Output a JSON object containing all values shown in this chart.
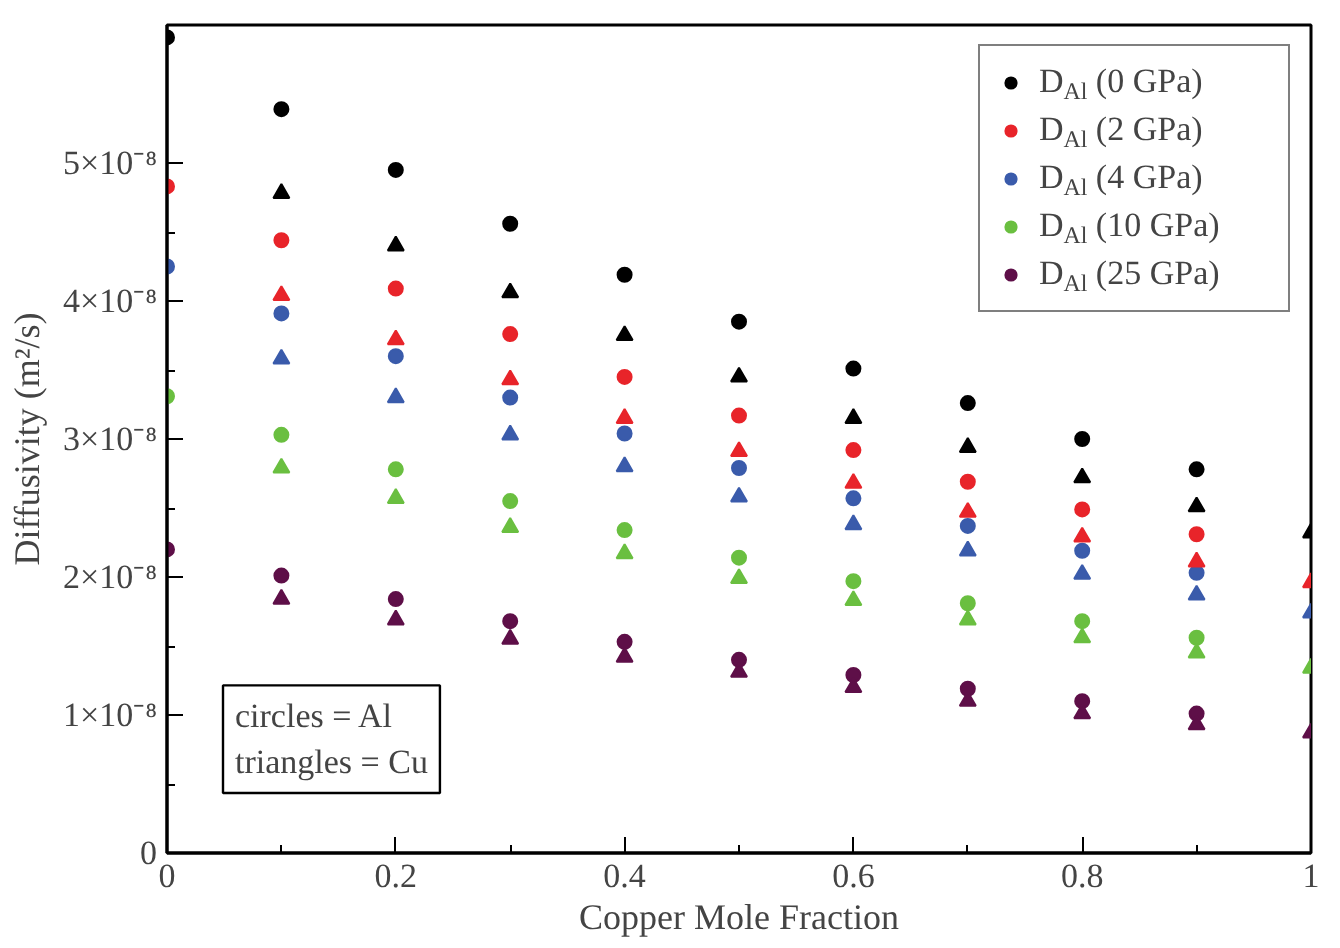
{
  "chart_data": {
    "type": "scatter",
    "xlabel": "Copper Mole Fraction",
    "ylabel": "Diffusivity (m²/s)",
    "xlim": [
      0,
      1
    ],
    "ylim": [
      0,
      6e-08
    ],
    "xticks": [
      0,
      0.2,
      0.4,
      0.6,
      0.8,
      1
    ],
    "yticks": [
      0,
      {
        "value": 1e-08,
        "label": "1×10⁻⁸"
      },
      {
        "value": 2e-08,
        "label": "2×10⁻⁸"
      },
      {
        "value": 3e-08,
        "label": "3×10⁻⁸"
      },
      {
        "value": 4e-08,
        "label": "4×10⁻⁸"
      },
      {
        "value": 5e-08,
        "label": "5×10⁻⁸"
      }
    ],
    "grid": false,
    "legend": "top right",
    "annotations": [
      "circles = Al",
      "triangles = Cu"
    ],
    "series": [
      {
        "name": "D$_{Al}$ (0 GPa)",
        "color": "#000000",
        "marker": "circle",
        "x": [
          0,
          0.1,
          0.2,
          0.3,
          0.4,
          0.5,
          0.6,
          0.7,
          0.8,
          0.9
        ],
        "values": [
          5.91e-08,
          5.39e-08,
          4.95e-08,
          4.56e-08,
          4.19e-08,
          3.85e-08,
          3.51e-08,
          3.26e-08,
          3e-08,
          2.78e-08
        ]
      },
      {
        "name": "D$_{Al}$ (2 GPa)",
        "color": "#e8242a",
        "marker": "circle",
        "x": [
          0,
          0.1,
          0.2,
          0.3,
          0.4,
          0.5,
          0.6,
          0.7,
          0.8,
          0.9
        ],
        "values": [
          4.83e-08,
          4.44e-08,
          4.09e-08,
          3.76e-08,
          3.45e-08,
          3.17e-08,
          2.92e-08,
          2.69e-08,
          2.49e-08,
          2.31e-08
        ]
      },
      {
        "name": "D$_{Al}$ (4 GPa)",
        "color": "#3a5bab",
        "marker": "circle",
        "x": [
          0,
          0.1,
          0.2,
          0.3,
          0.4,
          0.5,
          0.6,
          0.7,
          0.8,
          0.9
        ],
        "values": [
          4.25e-08,
          3.91e-08,
          3.6e-08,
          3.3e-08,
          3.04e-08,
          2.79e-08,
          2.57e-08,
          2.37e-08,
          2.19e-08,
          2.03e-08
        ]
      },
      {
        "name": "D$_{Al}$ (10 GPa)",
        "color": "#6abf40",
        "marker": "circle",
        "x": [
          0,
          0.1,
          0.2,
          0.3,
          0.4,
          0.5,
          0.6,
          0.7,
          0.8,
          0.9
        ],
        "values": [
          3.31e-08,
          3.03e-08,
          2.78e-08,
          2.55e-08,
          2.34e-08,
          2.14e-08,
          1.97e-08,
          1.81e-08,
          1.68e-08,
          1.56e-08
        ]
      },
      {
        "name": "D$_{Al}$ (25 GPa)",
        "color": "#5e0f48",
        "marker": "circle",
        "x": [
          0,
          0.1,
          0.2,
          0.3,
          0.4,
          0.5,
          0.6,
          0.7,
          0.8,
          0.9
        ],
        "values": [
          2.2e-08,
          2.01e-08,
          1.84e-08,
          1.68e-08,
          1.53e-08,
          1.4e-08,
          1.29e-08,
          1.19e-08,
          1.1e-08,
          1.01e-08
        ]
      },
      {
        "color": "#000000",
        "marker": "triangle",
        "x": [
          0.1,
          0.2,
          0.3,
          0.4,
          0.5,
          0.6,
          0.7,
          0.8,
          0.9,
          1
        ],
        "values": [
          4.78e-08,
          4.4e-08,
          4.06e-08,
          3.75e-08,
          3.45e-08,
          3.15e-08,
          2.94e-08,
          2.72e-08,
          2.51e-08,
          2.32e-08
        ]
      },
      {
        "color": "#e8242a",
        "marker": "triangle",
        "x": [
          0.1,
          0.2,
          0.3,
          0.4,
          0.5,
          0.6,
          0.7,
          0.8,
          0.9,
          1
        ],
        "values": [
          4.04e-08,
          3.72e-08,
          3.43e-08,
          3.15e-08,
          2.91e-08,
          2.68e-08,
          2.47e-08,
          2.29e-08,
          2.11e-08,
          1.96e-08
        ]
      },
      {
        "color": "#3a5bab",
        "marker": "triangle",
        "x": [
          0.1,
          0.2,
          0.3,
          0.4,
          0.5,
          0.6,
          0.7,
          0.8,
          0.9,
          1
        ],
        "values": [
          3.58e-08,
          3.3e-08,
          3.03e-08,
          2.8e-08,
          2.58e-08,
          2.38e-08,
          2.19e-08,
          2.02e-08,
          1.87e-08,
          1.74e-08
        ]
      },
      {
        "color": "#6abf40",
        "marker": "triangle",
        "x": [
          0.1,
          0.2,
          0.3,
          0.4,
          0.5,
          0.6,
          0.7,
          0.8,
          0.9,
          1
        ],
        "values": [
          2.79e-08,
          2.57e-08,
          2.36e-08,
          2.17e-08,
          1.99e-08,
          1.83e-08,
          1.69e-08,
          1.56e-08,
          1.45e-08,
          1.34e-08
        ]
      },
      {
        "color": "#5e0f48",
        "marker": "triangle",
        "x": [
          0.1,
          0.2,
          0.3,
          0.4,
          0.5,
          0.6,
          0.7,
          0.8,
          0.9,
          1
        ],
        "values": [
          1.84e-08,
          1.69e-08,
          1.55e-08,
          1.42e-08,
          1.31e-08,
          1.2e-08,
          1.1e-08,
          1.01e-08,
          9.3e-09,
          8.7e-09
        ]
      }
    ]
  }
}
